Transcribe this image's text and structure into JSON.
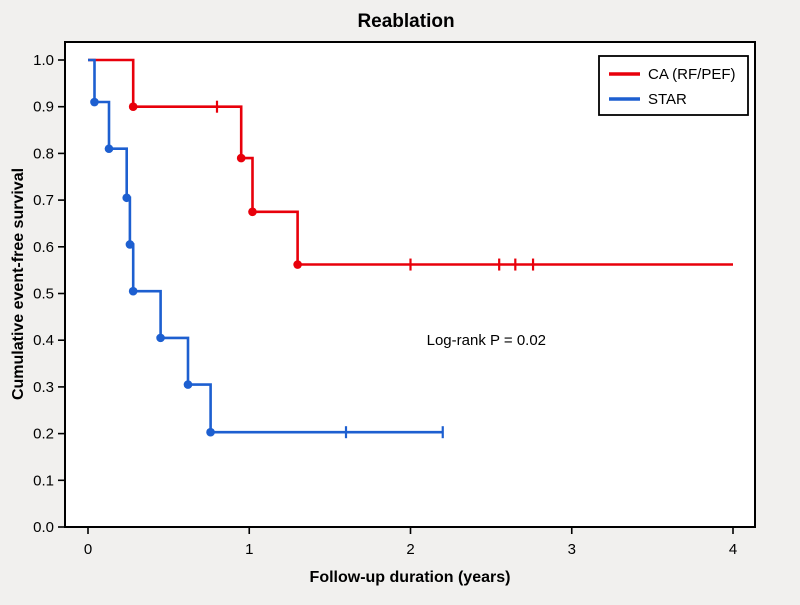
{
  "figure": {
    "background_color": "#f1f0ee",
    "plot_background_color": "#ffffff"
  },
  "chart_data": {
    "type": "line",
    "subtype": "kaplan-meier-step-curves",
    "title": "Reablation",
    "xlabel": "Follow-up duration (years)",
    "ylabel": "Cumulative event-free survival",
    "xlim": [
      0,
      4
    ],
    "ylim": [
      0,
      1
    ],
    "xticks": [
      0,
      1,
      2,
      3,
      4
    ],
    "yticks": [
      0,
      0.1,
      0.2,
      0.3,
      0.4,
      0.5,
      0.6,
      0.7,
      0.8,
      0.9,
      1
    ],
    "grid": false,
    "legend_position": "top-right-inside",
    "annotation": {
      "text": "Log-rank P = 0.02",
      "x": 2.1,
      "y": 0.39
    },
    "series": [
      {
        "name": "CA (RF/PEF)",
        "color": "#e8000b",
        "steps": [
          [
            0,
            1.0
          ],
          [
            0.28,
            1.0
          ],
          [
            0.28,
            0.9
          ],
          [
            0.95,
            0.9
          ],
          [
            0.95,
            0.79
          ],
          [
            1.02,
            0.79
          ],
          [
            1.02,
            0.675
          ],
          [
            1.3,
            0.675
          ],
          [
            1.3,
            0.562
          ],
          [
            4.0,
            0.562
          ]
        ],
        "events": [
          [
            0.28,
            0.9
          ],
          [
            0.95,
            0.79
          ],
          [
            1.02,
            0.675
          ],
          [
            1.3,
            0.562
          ]
        ],
        "censors": [
          [
            0.8,
            0.9
          ],
          [
            2.0,
            0.562
          ],
          [
            2.55,
            0.562
          ],
          [
            2.65,
            0.562
          ],
          [
            2.76,
            0.562
          ]
        ]
      },
      {
        "name": "STAR",
        "color": "#1d5fd0",
        "steps": [
          [
            0,
            1.0
          ],
          [
            0.04,
            1.0
          ],
          [
            0.04,
            0.91
          ],
          [
            0.13,
            0.91
          ],
          [
            0.13,
            0.81
          ],
          [
            0.24,
            0.81
          ],
          [
            0.24,
            0.705
          ],
          [
            0.26,
            0.705
          ],
          [
            0.26,
            0.605
          ],
          [
            0.28,
            0.605
          ],
          [
            0.28,
            0.505
          ],
          [
            0.45,
            0.505
          ],
          [
            0.45,
            0.405
          ],
          [
            0.62,
            0.405
          ],
          [
            0.62,
            0.305
          ],
          [
            0.76,
            0.305
          ],
          [
            0.76,
            0.203
          ],
          [
            2.2,
            0.203
          ]
        ],
        "events": [
          [
            0.04,
            0.91
          ],
          [
            0.13,
            0.81
          ],
          [
            0.24,
            0.705
          ],
          [
            0.26,
            0.605
          ],
          [
            0.28,
            0.505
          ],
          [
            0.45,
            0.405
          ],
          [
            0.62,
            0.305
          ],
          [
            0.76,
            0.203
          ]
        ],
        "censors": [
          [
            1.6,
            0.203
          ],
          [
            2.2,
            0.203
          ]
        ]
      }
    ]
  }
}
